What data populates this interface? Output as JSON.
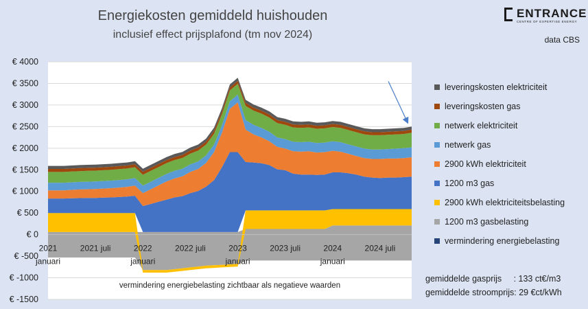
{
  "header": {
    "title": "Energiekosten gemiddeld huishouden",
    "subtitle": "inclusief effect prijsplafond (tm nov 2024)",
    "source": "data CBS"
  },
  "brand": {
    "name": "ENTRANCE",
    "tagline": "CENTRE OF EXPERTISE ENERGY"
  },
  "footnote": "vermindering energiebelasting zichtbaar als negatieve waarden",
  "prices": {
    "gas_label": "gemiddelde gasprijs",
    "gas_value": ": 133 ct€/m3",
    "electricity_label": "gemiddelde stroomprijs:",
    "electricity_value": "29 €ct/kWh"
  },
  "colors": {
    "plot_bg": "#ffffff",
    "page_bg": "#dce3f2",
    "arrow": "#4a7ec8"
  },
  "chart_data": {
    "type": "area",
    "title": "Energiekosten gemiddeld huishouden",
    "subtitle": "inclusief effect prijsplafond (tm nov 2024)",
    "x_start": "2021-01",
    "x_end": "2024-11",
    "ylim": [
      -1500,
      4000
    ],
    "y_ticks": [
      -1500,
      -1000,
      -500,
      0,
      500,
      1000,
      1500,
      2000,
      2500,
      3000,
      3500,
      4000
    ],
    "y_tick_labels": [
      "€ -1500",
      "€ -1000",
      "€ -500",
      "€ 0",
      "€ 500",
      "€ 1000",
      "€ 1500",
      "€ 2000",
      "€ 2500",
      "€ 3000",
      "€ 3500",
      "€ 4000"
    ],
    "x_tick_labels": [
      {
        "index": 0,
        "line1": "2021",
        "line2": "januari"
      },
      {
        "index": 6,
        "line1": "2021 juli",
        "line2": ""
      },
      {
        "index": 12,
        "line1": "2022",
        "line2": "januari"
      },
      {
        "index": 18,
        "line1": "2022 juli",
        "line2": ""
      },
      {
        "index": 24,
        "line1": "2023",
        "line2": "januari"
      },
      {
        "index": 30,
        "line1": "2023 juli",
        "line2": ""
      },
      {
        "index": 36,
        "line1": "2024",
        "line2": "januari"
      },
      {
        "index": 42,
        "line1": "2024 juli",
        "line2": ""
      }
    ],
    "grid": true,
    "legend_position": "right",
    "series": [
      {
        "name": "leveringskosten elektriciteit",
        "color": "#595959",
        "values": [
          70,
          70,
          70,
          70,
          70,
          70,
          70,
          70,
          70,
          70,
          70,
          70,
          70,
          70,
          70,
          70,
          70,
          70,
          70,
          70,
          70,
          70,
          70,
          70,
          70,
          70,
          70,
          70,
          70,
          70,
          70,
          70,
          70,
          70,
          70,
          70,
          70,
          70,
          70,
          70,
          70,
          70,
          70,
          70,
          70,
          70,
          70
        ]
      },
      {
        "name": "leveringskosten gas",
        "color": "#9e480e",
        "values": [
          70,
          70,
          70,
          70,
          70,
          70,
          70,
          70,
          70,
          70,
          70,
          70,
          70,
          70,
          70,
          70,
          70,
          70,
          70,
          70,
          70,
          70,
          70,
          70,
          70,
          70,
          70,
          70,
          70,
          70,
          70,
          70,
          70,
          70,
          70,
          70,
          70,
          70,
          70,
          70,
          70,
          70,
          70,
          70,
          70,
          70,
          70
        ]
      },
      {
        "name": "netwerk elektriciteit",
        "color": "#70ad47",
        "values": [
          250,
          250,
          250,
          250,
          250,
          250,
          250,
          250,
          250,
          250,
          250,
          250,
          250,
          250,
          250,
          250,
          250,
          250,
          250,
          250,
          250,
          250,
          250,
          250,
          250,
          330,
          330,
          330,
          330,
          330,
          330,
          330,
          330,
          330,
          330,
          330,
          330,
          330,
          330,
          330,
          330,
          330,
          330,
          330,
          330,
          330,
          340
        ]
      },
      {
        "name": "netwerk gas",
        "color": "#5b9bd5",
        "values": [
          175,
          175,
          175,
          175,
          175,
          175,
          175,
          175,
          175,
          175,
          175,
          175,
          175,
          175,
          175,
          175,
          175,
          175,
          175,
          175,
          175,
          175,
          175,
          175,
          180,
          220,
          220,
          220,
          220,
          220,
          220,
          220,
          220,
          220,
          220,
          220,
          220,
          220,
          220,
          220,
          220,
          220,
          220,
          220,
          230,
          230,
          230
        ]
      },
      {
        "name": "2900 kWh elektriciteit",
        "color": "#ed7d31",
        "values": [
          190,
          190,
          190,
          195,
          200,
          200,
          205,
          210,
          215,
          220,
          225,
          235,
          300,
          340,
          380,
          420,
          440,
          460,
          490,
          510,
          550,
          650,
          800,
          1000,
          1150,
          750,
          650,
          600,
          550,
          520,
          500,
          520,
          530,
          540,
          520,
          520,
          500,
          480,
          450,
          430,
          430,
          430,
          440,
          440,
          440,
          440,
          450
        ]
      },
      {
        "name": "1200 m3 gas",
        "color": "#4472c4",
        "values": [
          335,
          335,
          335,
          340,
          345,
          350,
          350,
          355,
          360,
          370,
          380,
          400,
          600,
          650,
          700,
          750,
          800,
          830,
          900,
          950,
          1050,
          1200,
          1500,
          1850,
          1850,
          1120,
          1110,
          1090,
          1050,
          950,
          930,
          850,
          830,
          830,
          820,
          830,
          850,
          850,
          830,
          800,
          750,
          730,
          720,
          730,
          730,
          740,
          750
        ]
      },
      {
        "name": "2900 kWh elektriciteitsbelasting",
        "color": "#ffc000",
        "values": [
          440,
          440,
          440,
          440,
          440,
          440,
          440,
          440,
          440,
          440,
          440,
          440,
          -60,
          -60,
          -60,
          -60,
          -60,
          -60,
          -60,
          -60,
          -60,
          -60,
          -60,
          -60,
          -60,
          430,
          430,
          430,
          430,
          430,
          430,
          430,
          430,
          430,
          430,
          430,
          380,
          380,
          380,
          380,
          380,
          380,
          380,
          380,
          380,
          380,
          380
        ]
      },
      {
        "name": "1200 m3 gasbelasting",
        "color": "#a5a5a5",
        "values": [
          60,
          60,
          60,
          60,
          60,
          60,
          60,
          60,
          60,
          60,
          60,
          60,
          60,
          60,
          60,
          60,
          60,
          60,
          60,
          60,
          60,
          60,
          60,
          60,
          60,
          130,
          130,
          130,
          130,
          130,
          130,
          130,
          130,
          130,
          130,
          130,
          210,
          210,
          210,
          210,
          210,
          210,
          210,
          210,
          210,
          210,
          210
        ]
      },
      {
        "name": "vermindering energiebelasting",
        "color": "#264478",
        "values": [
          -530,
          -530,
          -530,
          -530,
          -530,
          -530,
          -530,
          -530,
          -530,
          -530,
          -530,
          -530,
          -820,
          -820,
          -820,
          -820,
          -800,
          -780,
          -760,
          -740,
          -720,
          -710,
          -700,
          -690,
          -680,
          -600,
          -600,
          -600,
          -600,
          -600,
          -600,
          -600,
          -600,
          -600,
          -600,
          -600,
          -600,
          -600,
          -600,
          -600,
          -600,
          -600,
          -600,
          -600,
          -600,
          -600,
          -600
        ]
      }
    ]
  }
}
